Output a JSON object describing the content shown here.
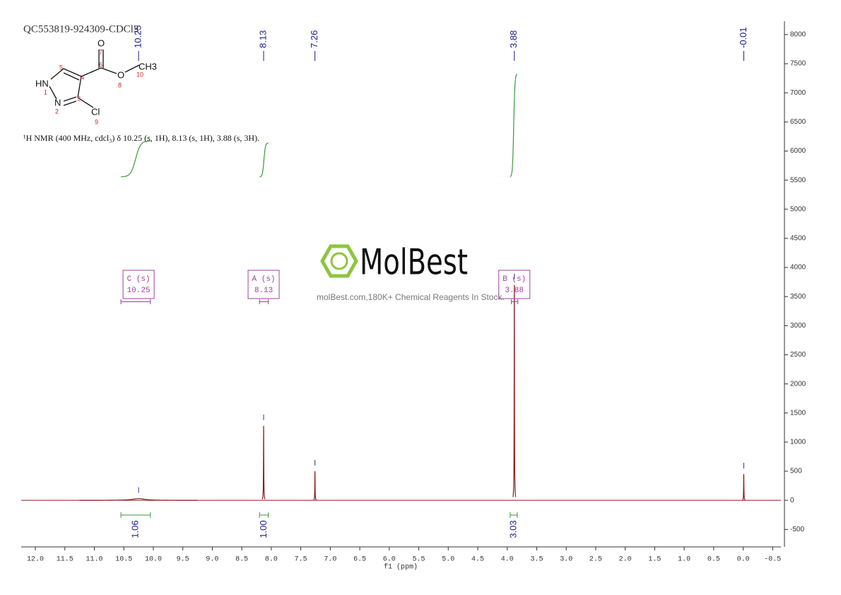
{
  "chart_data": {
    "type": "line",
    "title": "QC553819-924309-CDCl3",
    "subtitle": "¹H NMR (400 MHz, cdcl₃) δ 10.25 (s, 1H), 8.13 (s, 1H), 3.88 (s, 3H).",
    "x_label": "f1 (ppm)",
    "x": [
      10.25,
      8.13,
      7.26,
      3.88,
      -0.01
    ],
    "values": [
      30,
      1280,
      500,
      3700,
      450
    ],
    "linewidths": [
      0.25,
      0.006,
      0.006,
      0.006,
      0.006
    ],
    "color": "#8b1a1a",
    "xlim": [
      12.24,
      -0.64
    ],
    "xticks": [
      {
        "value": 12,
        "label": "12.0"
      },
      {
        "value": 11.5,
        "label": "11.5"
      },
      {
        "value": 11,
        "label": "11.0"
      },
      {
        "value": 10.5,
        "label": "10.5"
      },
      {
        "value": 10,
        "label": "10.0"
      },
      {
        "value": 9.5,
        "label": "9.5"
      },
      {
        "value": 9,
        "label": "9.0"
      },
      {
        "value": 8.5,
        "label": "8.5"
      },
      {
        "value": 8,
        "label": "8.0"
      },
      {
        "value": 7.5,
        "label": "7.5"
      },
      {
        "value": 7,
        "label": "7.0"
      },
      {
        "value": 6.5,
        "label": "6.5"
      },
      {
        "value": 6,
        "label": "6.0"
      },
      {
        "value": 5.5,
        "label": "5.5"
      },
      {
        "value": 5,
        "label": "5.0"
      },
      {
        "value": 4.5,
        "label": "4.5"
      },
      {
        "value": 4,
        "label": "4.0"
      },
      {
        "value": 3.5,
        "label": "3.5"
      },
      {
        "value": 3,
        "label": "3.0"
      },
      {
        "value": 2.5,
        "label": "2.5"
      },
      {
        "value": 2,
        "label": "2.0"
      },
      {
        "value": 1.5,
        "label": "1.5"
      },
      {
        "value": 1,
        "label": "1.0"
      },
      {
        "value": 0.5,
        "label": "0.5"
      },
      {
        "value": 0,
        "label": "0.0"
      },
      {
        "value": -0.5,
        "label": "-0.5"
      }
    ],
    "ylim": [
      -800,
      8230
    ],
    "yticks": [
      -500,
      0,
      500,
      1000,
      1500,
      2000,
      2500,
      3000,
      3500,
      4000,
      4500,
      5000,
      5500,
      6000,
      6500,
      7000,
      7500,
      8000
    ],
    "integrals": {
      "ranges": [
        [
          10.55,
          10.05
        ],
        [
          8.2,
          8.05
        ],
        [
          3.95,
          3.83
        ]
      ],
      "values": [
        1.06,
        1.0,
        3.03
      ],
      "value_labels": [
        "1.06",
        "1.00",
        "3.03"
      ],
      "color": "#3a9a3a"
    },
    "multiplets": {
      "labels": [
        "C (s)",
        "A (s)",
        "B (s)"
      ],
      "shifts": [
        10.25,
        8.13,
        3.88
      ],
      "ranges": [
        [
          10.55,
          10.05
        ],
        [
          8.2,
          8.05
        ],
        [
          3.93,
          3.82
        ]
      ],
      "color": "#a040a0"
    }
  },
  "structure": {
    "atoms": [
      "HN",
      "N",
      "O",
      "O",
      "CH3",
      "Cl"
    ],
    "numbers": [
      "1",
      "2",
      "3",
      "4",
      "5",
      "6",
      "7",
      "8",
      "9",
      "10"
    ]
  },
  "watermark": {
    "brand": "MolBest",
    "tagline": "molBest.com,180K+ Chemical Reagents In Stock."
  }
}
